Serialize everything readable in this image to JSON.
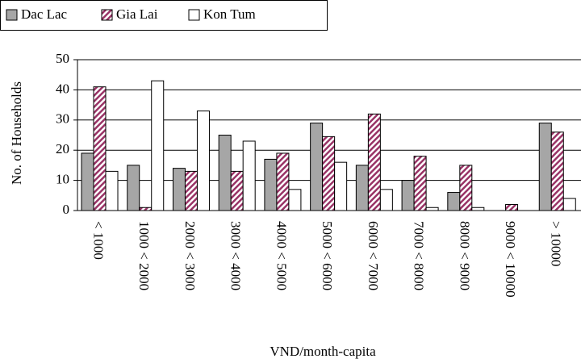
{
  "chart_data": {
    "type": "bar",
    "x_label": "VND/month-capita",
    "y_label": "No. of Households",
    "categories": [
      "< 1000",
      "1000 < 2000",
      "2000 < 3000",
      "3000 < 4000",
      "4000 < 5000",
      "5000 < 6000",
      "6000 < 7000",
      "7000 < 8000",
      "8000 < 9000",
      "9000 < 10000",
      "> 10000"
    ],
    "series": [
      {
        "name": "Dac Lac",
        "color": "#a6a6a6",
        "values": [
          19,
          15,
          14,
          25,
          17,
          29,
          15,
          10,
          6,
          0,
          29
        ]
      },
      {
        "name": "Gia Lai",
        "color": "#993366",
        "pattern": "diagonal",
        "values": [
          41,
          1,
          13,
          13,
          19,
          24.5,
          32,
          18,
          15,
          2,
          26
        ]
      },
      {
        "name": "Kon Tum",
        "color": "#ffffff",
        "values": [
          13,
          43,
          33,
          23,
          7,
          16,
          7,
          1,
          1,
          0,
          4
        ]
      }
    ],
    "ylim": [
      0,
      50
    ],
    "yticks": [
      0,
      10,
      20,
      30,
      40,
      50
    ],
    "grid": true,
    "legend": "top"
  }
}
